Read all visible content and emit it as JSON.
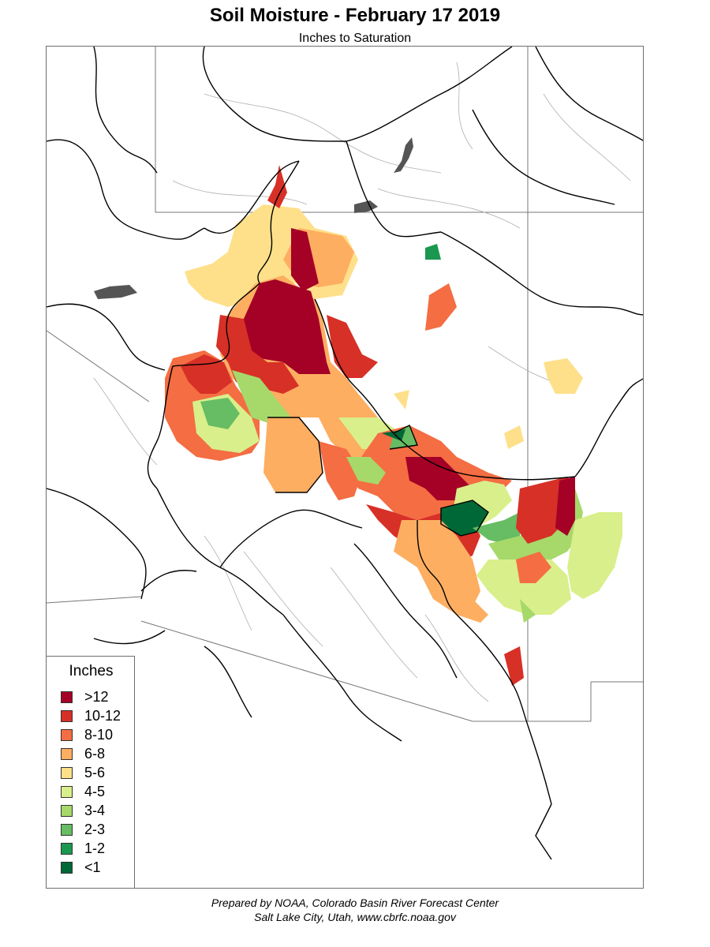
{
  "title": "Soil Moisture - February 17 2019",
  "subtitle": "Inches to Saturation",
  "legend": {
    "title": "Inches",
    "items": [
      {
        "label": ">12",
        "color": "#a50026"
      },
      {
        "label": "10-12",
        "color": "#d73027"
      },
      {
        "label": "8-10",
        "color": "#f46d43"
      },
      {
        "label": "6-8",
        "color": "#fdae61"
      },
      {
        "label": "5-6",
        "color": "#fee08b"
      },
      {
        "label": "4-5",
        "color": "#d9ef8b"
      },
      {
        "label": "3-4",
        "color": "#a6d96a"
      },
      {
        "label": "2-3",
        "color": "#66bd63"
      },
      {
        "label": "1-2",
        "color": "#1a9850"
      },
      {
        "label": "<1",
        "color": "#006837"
      }
    ]
  },
  "footer": {
    "line1": "Prepared by NOAA, Colorado Basin River Forecast Center",
    "line2": "Salt Lake City, Utah, www.cbrfc.noaa.gov"
  }
}
